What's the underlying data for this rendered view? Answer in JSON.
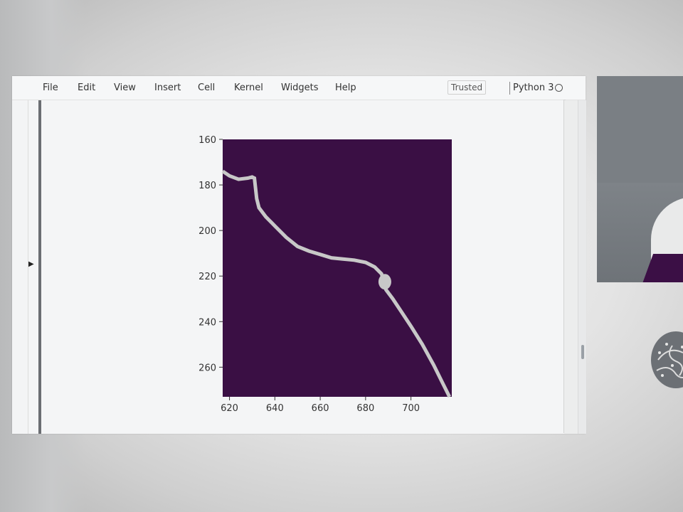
{
  "menubar": {
    "items": [
      "File",
      "Edit",
      "View",
      "Insert",
      "Cell",
      "Kernel",
      "Widgets",
      "Help"
    ],
    "trusted_label": "Trusted",
    "kernel_name": "Python 3"
  },
  "chart_data": {
    "type": "heatmap",
    "x_ticks": [
      "620",
      "640",
      "660",
      "680",
      "700"
    ],
    "y_ticks": [
      "160",
      "180",
      "200",
      "220",
      "240",
      "260"
    ],
    "xlim": [
      617,
      718
    ],
    "ylim": [
      160,
      273
    ],
    "colors": {
      "background": "#3a0f44",
      "line": "#c8c8c8"
    },
    "line_path": [
      [
        617,
        174
      ],
      [
        620,
        176
      ],
      [
        624,
        177.5
      ],
      [
        628,
        177
      ],
      [
        630,
        176.5
      ],
      [
        631,
        177
      ],
      [
        632,
        186
      ],
      [
        633,
        190
      ],
      [
        636,
        194
      ],
      [
        640,
        198
      ],
      [
        645,
        203
      ],
      [
        650,
        207
      ],
      [
        655,
        209
      ],
      [
        660,
        210.5
      ],
      [
        665,
        212
      ],
      [
        670,
        212.5
      ],
      [
        675,
        213
      ],
      [
        680,
        214
      ],
      [
        684,
        216
      ],
      [
        687,
        219
      ],
      [
        688,
        222
      ],
      [
        689,
        226
      ],
      [
        692,
        230
      ],
      [
        696,
        236
      ],
      [
        700,
        242
      ],
      [
        705,
        250
      ],
      [
        710,
        259
      ],
      [
        714,
        267
      ],
      [
        717,
        273
      ]
    ],
    "blob": [
      688.5,
      222.5
    ]
  }
}
